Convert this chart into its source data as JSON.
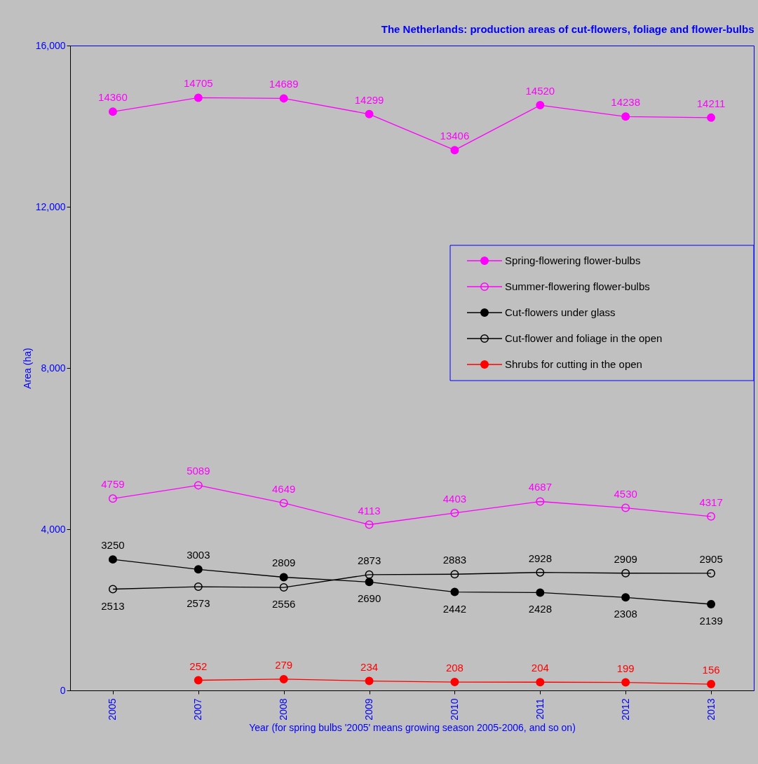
{
  "chart_data": {
    "type": "line",
    "title": "The Netherlands: production areas of cut-flowers, foliage and flower-bulbs",
    "xlabel": "Year (for spring bulbs '2005' means growing season 2005-2006, and so on)",
    "ylabel": "Area (ha)",
    "categories": [
      "2005",
      "2007",
      "2008",
      "2009",
      "2010",
      "2011",
      "2012",
      "2013"
    ],
    "series": [
      {
        "name": "Spring-flowering flower-bulbs",
        "color": "#ff00ff",
        "marker": "circle",
        "values": [
          14360,
          14705,
          14689,
          14299,
          13406,
          14520,
          14238,
          14211
        ]
      },
      {
        "name": "Summer-flowering flower-bulbs",
        "color": "#ff00ff",
        "marker": "circle-open",
        "values": [
          4759,
          5089,
          4649,
          4113,
          4403,
          4687,
          4530,
          4317
        ]
      },
      {
        "name": "Cut-flowers under glass",
        "color": "#000000",
        "marker": "circle",
        "values": [
          3250,
          3003,
          2809,
          2690,
          2442,
          2428,
          2308,
          2139
        ]
      },
      {
        "name": "Cut-flower and foliage in the open",
        "color": "#000000",
        "marker": "circle-open",
        "values": [
          2513,
          2573,
          2556,
          2873,
          2883,
          2928,
          2909,
          2905
        ]
      },
      {
        "name": "Shrubs for cutting in the open",
        "color": "#ff0000",
        "marker": "circle",
        "values": [
          null,
          252,
          279,
          234,
          208,
          204,
          199,
          156
        ]
      }
    ],
    "ylim": [
      0,
      16000
    ],
    "yticks": [
      0,
      {
        "value": 4000,
        "label": "4,000"
      },
      {
        "value": 8000,
        "label": "8,000"
      },
      {
        "value": 12000,
        "label": "12,000"
      },
      {
        "value": 16000,
        "label": "16,000"
      }
    ],
    "grid": false,
    "legend": "right",
    "data_labels": true
  }
}
